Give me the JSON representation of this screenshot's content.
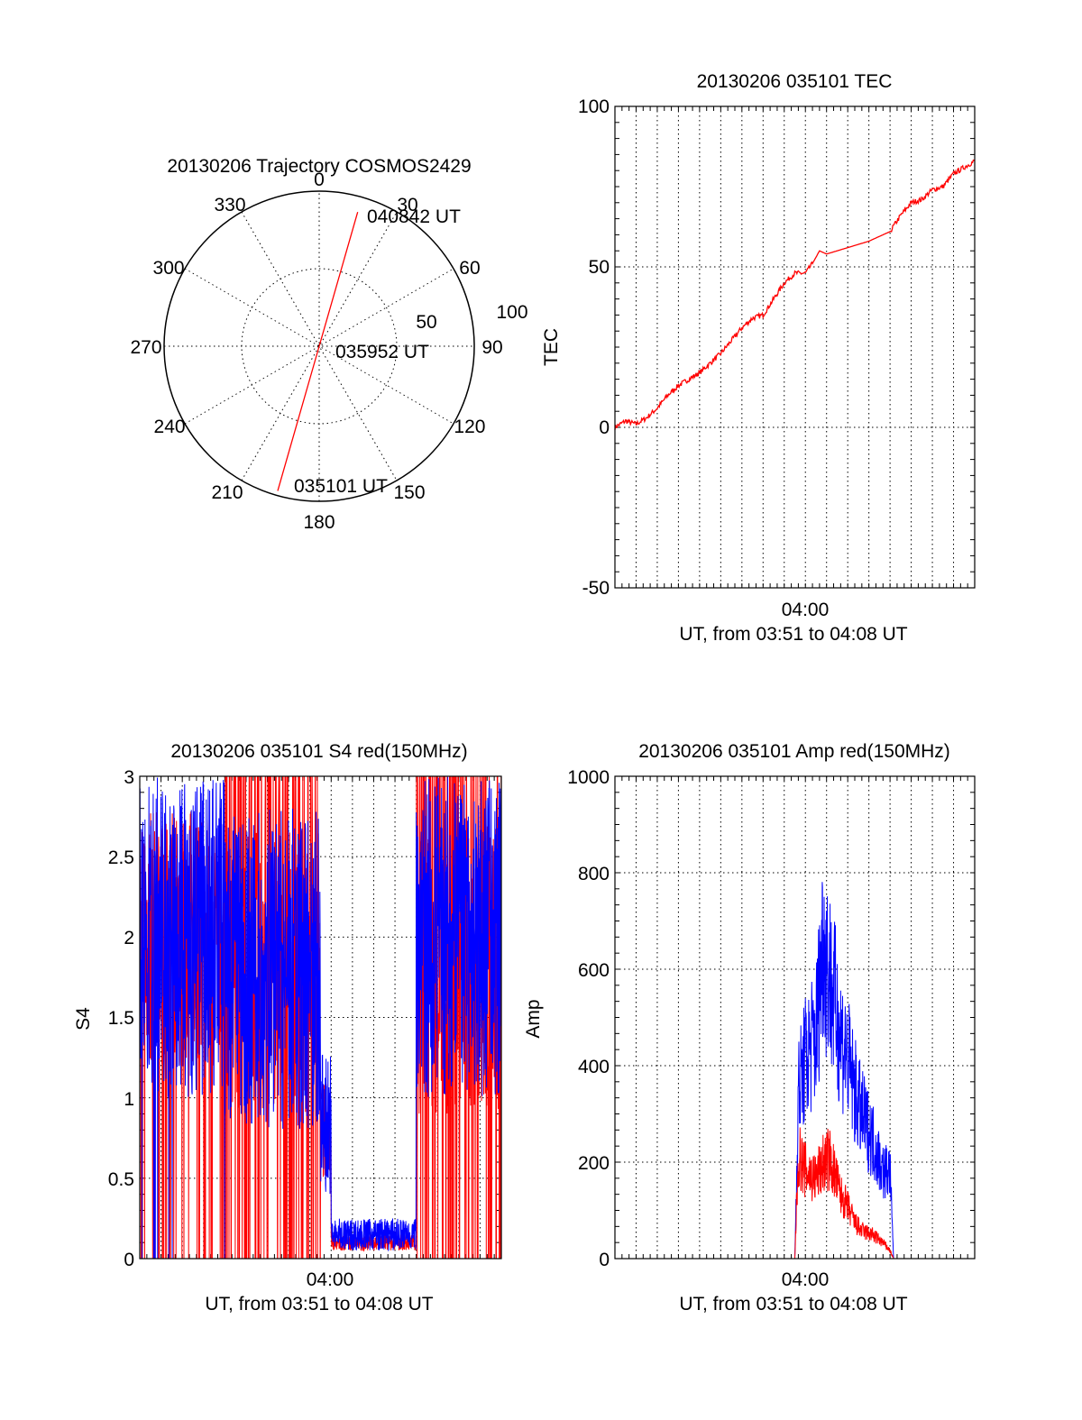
{
  "colors": {
    "red_series": "#ff0000",
    "blue_series": "#0000ff",
    "axes": "#000000",
    "background": "#ffffff"
  },
  "chart_data": [
    {
      "type": "polar",
      "title": "20130206 Trajectory COSMOS2429",
      "angle_labels": [
        "0",
        "30",
        "60",
        "90",
        "120",
        "150",
        "180",
        "210",
        "240",
        "270",
        "300",
        "330"
      ],
      "radial_labels": [
        "50",
        "100"
      ],
      "radial_range": [
        0,
        100
      ],
      "grid": true,
      "trajectory": [
        {
          "azimuth": 196,
          "radius": 97,
          "label": "035101 UT"
        },
        {
          "azimuth": 180,
          "radius": 0,
          "label": "035952 UT"
        },
        {
          "azimuth": 16,
          "radius": 90,
          "label": "040842 UT"
        }
      ]
    },
    {
      "type": "line",
      "title": "20130206 035101 TEC",
      "ylabel": "TEC",
      "xlabel": "UT, from 03:51 to 04:08 UT",
      "x_tick_label": "04:00",
      "xlim": [
        "03:51",
        "04:08"
      ],
      "ylim": [
        -50,
        100
      ],
      "y_ticks": [
        "-50",
        "0",
        "50",
        "100"
      ],
      "grid": true,
      "series": [
        {
          "color": "#ff0000",
          "points": [
            [
              "03:51:00",
              0
            ],
            [
              "03:51:30",
              2
            ],
            [
              "03:52:00",
              1
            ],
            [
              "03:52:30",
              3
            ],
            [
              "03:53:00",
              6
            ],
            [
              "03:53:30",
              10
            ],
            [
              "03:54:00",
              13
            ],
            [
              "03:54:30",
              15
            ],
            [
              "03:55:00",
              17
            ],
            [
              "03:55:30",
              20
            ],
            [
              "03:56:00",
              23
            ],
            [
              "03:56:30",
              27
            ],
            [
              "03:57:00",
              31
            ],
            [
              "03:57:30",
              34
            ],
            [
              "03:58:00",
              35
            ],
            [
              "03:58:30",
              40
            ],
            [
              "03:59:00",
              45
            ],
            [
              "03:59:30",
              48
            ],
            [
              "04:00:00",
              48
            ],
            [
              "04:00:20",
              51
            ],
            [
              "04:00:40",
              55
            ],
            [
              "04:01:00",
              54
            ],
            [
              "04:01:30",
              55
            ],
            [
              "04:02:00",
              56
            ],
            [
              "04:03:00",
              58
            ],
            [
              "04:04:00",
              61
            ],
            [
              "04:04:30",
              66
            ],
            [
              "04:05:00",
              70
            ],
            [
              "04:05:30",
              71
            ],
            [
              "04:06:00",
              74
            ],
            [
              "04:06:30",
              75
            ],
            [
              "04:07:00",
              79
            ],
            [
              "04:07:30",
              81
            ],
            [
              "04:08:00",
              83
            ]
          ]
        }
      ]
    },
    {
      "type": "line",
      "title": "20130206 035101 S4 red(150MHz)",
      "ylabel": "S4",
      "xlabel": "UT, from 03:51 to 04:08 UT",
      "x_tick_label": "04:00",
      "xlim": [
        "03:51",
        "04:08"
      ],
      "ylim": [
        0,
        3
      ],
      "y_ticks": [
        "0",
        "0.5",
        "1",
        "1.5",
        "2",
        "2.5",
        "3"
      ],
      "grid": true,
      "segments": [
        {
          "from": "03:51:00",
          "to": "03:55:00",
          "red": "noisy, hidden behind blue, drops to 0",
          "blue_range": [
            1.0,
            3.0
          ]
        },
        {
          "from": "03:55:00",
          "to": "03:59:30",
          "red_range": [
            0.0,
            3.0
          ],
          "blue_range": [
            0.8,
            2.8
          ]
        },
        {
          "from": "03:59:30",
          "to": "04:00:00",
          "red_range": [
            0.5,
            1.1
          ],
          "blue_range": [
            0.4,
            1.3
          ]
        },
        {
          "from": "04:00:00",
          "to": "04:04:00",
          "red_range": [
            0.05,
            0.15
          ],
          "blue_range": [
            0.05,
            0.25
          ]
        },
        {
          "from": "04:04:00",
          "to": "04:08:00",
          "red_range": [
            0.0,
            3.0
          ],
          "blue_range": [
            1.0,
            3.0
          ]
        }
      ]
    },
    {
      "type": "line",
      "title": "20130206 035101 Amp red(150MHz)",
      "ylabel": "Amp",
      "xlabel": "UT, from 03:51 to 04:08 UT",
      "x_tick_label": "04:00",
      "xlim": [
        "03:51",
        "04:08"
      ],
      "ylim": [
        0,
        1000
      ],
      "y_ticks": [
        "0",
        "200",
        "400",
        "600",
        "800",
        "1000"
      ],
      "grid": true,
      "series": [
        {
          "color": "#0000ff",
          "points": [
            [
              "03:51:00",
              0
            ],
            [
              "03:59:30",
              0
            ],
            [
              "03:59:40",
              420
            ],
            [
              "04:00:00",
              500
            ],
            [
              "04:00:30",
              560
            ],
            [
              "04:00:50",
              800
            ],
            [
              "04:01:10",
              700
            ],
            [
              "04:01:40",
              560
            ],
            [
              "04:02:00",
              500
            ],
            [
              "04:02:20",
              420
            ],
            [
              "04:02:40",
              360
            ],
            [
              "04:03:10",
              300
            ],
            [
              "04:03:40",
              220
            ],
            [
              "04:04:00",
              220
            ],
            [
              "04:04:10",
              0
            ],
            [
              "04:08:00",
              0
            ]
          ]
        },
        {
          "color": "#ff0000",
          "points": [
            [
              "03:51:00",
              0
            ],
            [
              "03:59:30",
              0
            ],
            [
              "03:59:40",
              260
            ],
            [
              "04:00:00",
              220
            ],
            [
              "04:00:30",
              200
            ],
            [
              "04:00:50",
              240
            ],
            [
              "04:01:10",
              250
            ],
            [
              "04:01:40",
              160
            ],
            [
              "04:02:00",
              130
            ],
            [
              "04:02:20",
              90
            ],
            [
              "04:02:40",
              70
            ],
            [
              "04:03:10",
              60
            ],
            [
              "04:03:40",
              40
            ],
            [
              "04:04:00",
              20
            ],
            [
              "04:04:10",
              0
            ],
            [
              "04:08:00",
              0
            ]
          ]
        }
      ]
    }
  ]
}
